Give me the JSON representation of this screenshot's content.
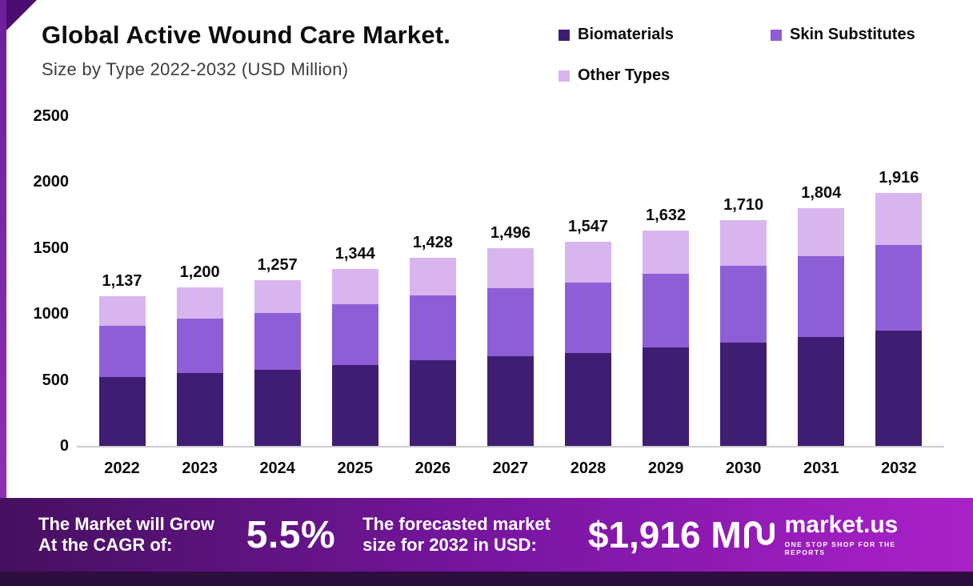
{
  "header": {
    "title": "Global Active Wound Care Market.",
    "subtitle": "Size by Type 2022-2032 (USD Million)"
  },
  "legend": [
    {
      "label": "Biomaterials",
      "color": "#3f1d73"
    },
    {
      "label": "Skin Substitutes",
      "color": "#8e5ed6"
    },
    {
      "label": "Other Types",
      "color": "#d8b5ee"
    }
  ],
  "chart_data": {
    "type": "bar",
    "stacked": true,
    "title": "Global Active Wound Care Market. Size by Type 2022-2032 (USD Million)",
    "categories": [
      "2022",
      "2023",
      "2024",
      "2025",
      "2026",
      "2027",
      "2028",
      "2029",
      "2030",
      "2031",
      "2032"
    ],
    "series": [
      {
        "name": "Biomaterials",
        "color": "#3f1d73",
        "values": [
          520,
          550,
          575,
          615,
          650,
          680,
          705,
          745,
          780,
          825,
          875
        ]
      },
      {
        "name": "Skin Substitutes",
        "color": "#8e5ed6",
        "values": [
          390,
          413,
          430,
          460,
          490,
          515,
          530,
          560,
          585,
          615,
          650
        ]
      },
      {
        "name": "Other Types",
        "color": "#d8b5ee",
        "values": [
          227,
          237,
          252,
          269,
          288,
          301,
          312,
          327,
          345,
          364,
          391
        ]
      }
    ],
    "totals": [
      1137,
      1200,
      1257,
      1344,
      1428,
      1496,
      1547,
      1632,
      1710,
      1804,
      1916
    ],
    "total_labels": [
      "1,137",
      "1,200",
      "1,257",
      "1,344",
      "1,428",
      "1,496",
      "1,547",
      "1,632",
      "1,710",
      "1,804",
      "1,916"
    ],
    "xlabel": "",
    "ylabel": "",
    "ylim": [
      0,
      2500
    ],
    "yticks": [
      0,
      500,
      1000,
      1500,
      2000,
      2500
    ],
    "grid": false,
    "legend_position": "top-right"
  },
  "banner": {
    "cagr_label": "The Market will Grow At the CAGR of:",
    "cagr_value": "5.5%",
    "forecast_label": "The forecasted market size for 2032 in USD:",
    "forecast_value": "$1,916 M",
    "brand": "market.us",
    "brand_tagline": "ONE STOP SHOP FOR THE REPORTS"
  }
}
